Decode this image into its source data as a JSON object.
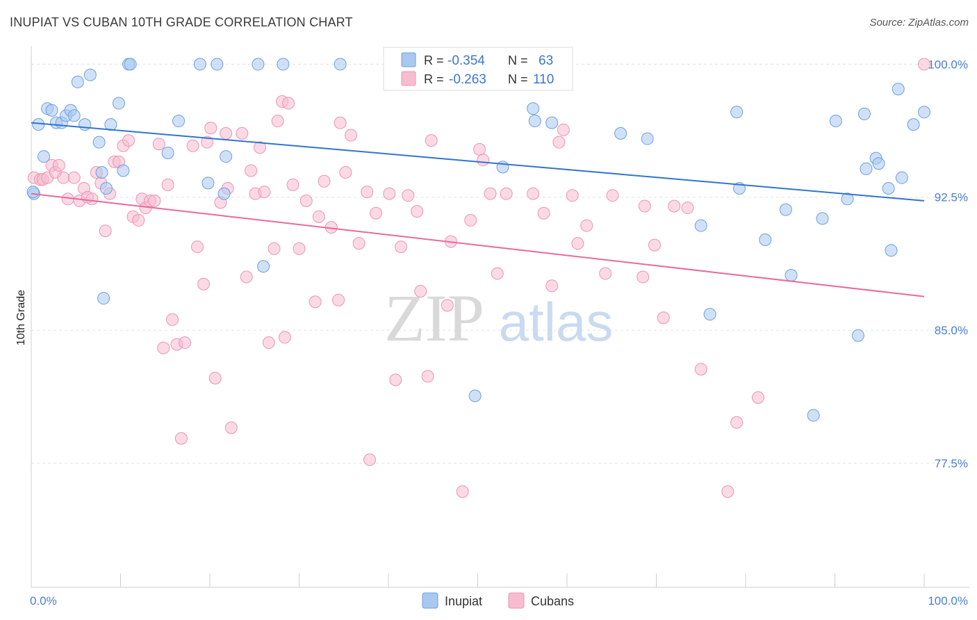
{
  "title": "INUPIAT VS CUBAN 10TH GRADE CORRELATION CHART",
  "source": "Source: ZipAtlas.com",
  "watermark": {
    "zip": "ZIP",
    "atlas": "atlas"
  },
  "colors": {
    "inupiat_fill": "#a9c8f0",
    "inupiat_stroke": "#6b9fe0",
    "inupiat_line": "#2f74d0",
    "cubans_fill": "#f7bcd0",
    "cubans_stroke": "#ec93b3",
    "cubans_line": "#e8699a",
    "tick_text": "#4a7fd0",
    "grid": "#e3e3e3"
  },
  "legend": {
    "rows": [
      {
        "r_label": "R =",
        "r_value": "-0.354",
        "n_label": "N =",
        "n_value": "63"
      },
      {
        "r_label": "R =",
        "r_value": "-0.263",
        "n_label": "N =",
        "n_value": "110"
      }
    ]
  },
  "chart_data": {
    "type": "scatter",
    "title": "INUPIAT VS CUBAN 10TH GRADE CORRELATION CHART",
    "xlabel": "",
    "ylabel": "10th Grade",
    "xlim": [
      0,
      100
    ],
    "ylim": [
      70.5,
      100.8
    ],
    "x_tick_labels": [
      "0.0%",
      "100.0%"
    ],
    "y_ticks": [
      77.5,
      85.0,
      92.5,
      100.0
    ],
    "y_tick_labels": [
      "77.5%",
      "85.0%",
      "92.5%",
      "100.0%"
    ],
    "grid": true,
    "legend_position": "top-center",
    "series": [
      {
        "name": "Inupiat",
        "r": -0.354,
        "n": 63,
        "trend": {
          "x": [
            0,
            100
          ],
          "y": [
            96.7,
            92.3
          ]
        },
        "points": [
          [
            0.3,
            92.7
          ],
          [
            0.8,
            96.6
          ],
          [
            1.4,
            94.8
          ],
          [
            1.8,
            97.5
          ],
          [
            2.3,
            97.4
          ],
          [
            2.8,
            96.7
          ],
          [
            3.4,
            96.7
          ],
          [
            3.9,
            97.1
          ],
          [
            4.4,
            97.4
          ],
          [
            4.8,
            97.1
          ],
          [
            5.2,
            99.0
          ],
          [
            6.0,
            96.6
          ],
          [
            6.6,
            99.4
          ],
          [
            7.6,
            95.6
          ],
          [
            7.9,
            93.9
          ],
          [
            8.1,
            86.8
          ],
          [
            8.4,
            93.0
          ],
          [
            8.9,
            96.6
          ],
          [
            9.8,
            97.8
          ],
          [
            10.3,
            94.0
          ],
          [
            10.9,
            100.0
          ],
          [
            11.1,
            100.0
          ],
          [
            15.3,
            95.0
          ],
          [
            16.5,
            96.8
          ],
          [
            18.9,
            100.0
          ],
          [
            19.8,
            93.3
          ],
          [
            20.8,
            100.0
          ],
          [
            21.6,
            92.7
          ],
          [
            21.8,
            94.8
          ],
          [
            25.4,
            100.0
          ],
          [
            26.0,
            88.6
          ],
          [
            28.2,
            100.0
          ],
          [
            34.6,
            100.0
          ],
          [
            49.7,
            81.3
          ],
          [
            52.8,
            94.2
          ],
          [
            56.2,
            97.5
          ],
          [
            56.4,
            96.8
          ],
          [
            58.3,
            96.7
          ],
          [
            66.0,
            96.1
          ],
          [
            69.0,
            95.8
          ],
          [
            75.0,
            90.9
          ],
          [
            76.0,
            85.9
          ],
          [
            79.0,
            97.3
          ],
          [
            79.3,
            93.0
          ],
          [
            82.2,
            90.1
          ],
          [
            84.5,
            91.8
          ],
          [
            85.1,
            88.1
          ],
          [
            87.6,
            80.2
          ],
          [
            88.6,
            91.3
          ],
          [
            90.1,
            96.8
          ],
          [
            91.4,
            92.4
          ],
          [
            92.6,
            84.7
          ],
          [
            93.3,
            97.2
          ],
          [
            93.5,
            94.1
          ],
          [
            94.6,
            94.7
          ],
          [
            94.9,
            94.4
          ],
          [
            96.0,
            93.0
          ],
          [
            96.3,
            89.5
          ],
          [
            97.1,
            98.6
          ],
          [
            97.5,
            93.6
          ],
          [
            98.8,
            96.6
          ],
          [
            100.0,
            97.3
          ],
          [
            0.2,
            92.8
          ]
        ]
      },
      {
        "name": "Cubans",
        "r": -0.263,
        "n": 110,
        "trend": {
          "x": [
            0,
            100
          ],
          "y": [
            92.7,
            86.9
          ]
        },
        "points": [
          [
            0.3,
            93.6
          ],
          [
            1.0,
            93.5
          ],
          [
            1.3,
            93.5
          ],
          [
            1.8,
            93.6
          ],
          [
            2.3,
            94.3
          ],
          [
            2.7,
            93.9
          ],
          [
            3.1,
            94.3
          ],
          [
            3.6,
            93.6
          ],
          [
            4.1,
            92.4
          ],
          [
            4.8,
            93.6
          ],
          [
            5.4,
            92.3
          ],
          [
            5.9,
            93.0
          ],
          [
            6.3,
            92.5
          ],
          [
            6.8,
            92.4
          ],
          [
            7.3,
            93.9
          ],
          [
            7.8,
            93.3
          ],
          [
            8.3,
            90.6
          ],
          [
            8.8,
            92.7
          ],
          [
            9.3,
            94.5
          ],
          [
            9.8,
            94.5
          ],
          [
            10.3,
            95.4
          ],
          [
            10.9,
            95.7
          ],
          [
            11.4,
            91.4
          ],
          [
            12.0,
            91.2
          ],
          [
            12.4,
            92.4
          ],
          [
            12.8,
            91.9
          ],
          [
            13.3,
            92.3
          ],
          [
            13.8,
            92.3
          ],
          [
            14.3,
            95.5
          ],
          [
            14.8,
            84.0
          ],
          [
            15.3,
            93.2
          ],
          [
            15.8,
            85.6
          ],
          [
            16.3,
            84.2
          ],
          [
            16.8,
            78.9
          ],
          [
            17.2,
            84.3
          ],
          [
            18.1,
            95.4
          ],
          [
            18.6,
            89.7
          ],
          [
            19.3,
            87.6
          ],
          [
            19.7,
            95.6
          ],
          [
            20.1,
            96.4
          ],
          [
            20.6,
            82.3
          ],
          [
            21.2,
            92.2
          ],
          [
            21.8,
            96.1
          ],
          [
            22.0,
            93.0
          ],
          [
            22.4,
            79.5
          ],
          [
            23.6,
            96.1
          ],
          [
            24.1,
            88.0
          ],
          [
            24.6,
            94.0
          ],
          [
            25.1,
            92.7
          ],
          [
            25.6,
            95.3
          ],
          [
            26.1,
            92.8
          ],
          [
            26.6,
            84.3
          ],
          [
            27.2,
            89.6
          ],
          [
            27.6,
            96.8
          ],
          [
            28.1,
            97.9
          ],
          [
            28.4,
            84.6
          ],
          [
            28.8,
            97.8
          ],
          [
            29.3,
            93.2
          ],
          [
            30.0,
            89.6
          ],
          [
            30.8,
            92.3
          ],
          [
            31.8,
            86.6
          ],
          [
            32.2,
            91.4
          ],
          [
            32.8,
            93.4
          ],
          [
            33.6,
            90.8
          ],
          [
            34.4,
            86.7
          ],
          [
            34.6,
            96.7
          ],
          [
            35.2,
            93.9
          ],
          [
            35.8,
            96.0
          ],
          [
            36.7,
            89.9
          ],
          [
            37.6,
            92.8
          ],
          [
            37.9,
            77.7
          ],
          [
            38.6,
            91.6
          ],
          [
            40.1,
            92.7
          ],
          [
            40.8,
            82.2
          ],
          [
            41.4,
            89.7
          ],
          [
            42.2,
            92.6
          ],
          [
            43.6,
            87.2
          ],
          [
            43.2,
            91.7
          ],
          [
            44.4,
            82.4
          ],
          [
            44.8,
            95.7
          ],
          [
            46.6,
            86.4
          ],
          [
            47.0,
            90.0
          ],
          [
            48.3,
            75.9
          ],
          [
            49.2,
            91.2
          ],
          [
            50.2,
            95.2
          ],
          [
            50.6,
            94.6
          ],
          [
            51.4,
            92.7
          ],
          [
            52.2,
            88.2
          ],
          [
            53.2,
            92.7
          ],
          [
            56.2,
            92.7
          ],
          [
            57.4,
            91.6
          ],
          [
            58.3,
            87.5
          ],
          [
            59.1,
            95.6
          ],
          [
            59.6,
            96.3
          ],
          [
            60.6,
            92.6
          ],
          [
            61.2,
            89.9
          ],
          [
            62.2,
            90.9
          ],
          [
            64.3,
            88.2
          ],
          [
            65.1,
            92.6
          ],
          [
            68.5,
            88.0
          ],
          [
            68.7,
            92.0
          ],
          [
            69.8,
            89.8
          ],
          [
            70.8,
            85.7
          ],
          [
            73.5,
            91.9
          ],
          [
            75.0,
            82.8
          ],
          [
            78.0,
            75.9
          ],
          [
            79.0,
            79.8
          ],
          [
            81.4,
            81.2
          ],
          [
            100.0,
            100.0
          ],
          [
            72.0,
            92.0
          ]
        ]
      }
    ]
  }
}
